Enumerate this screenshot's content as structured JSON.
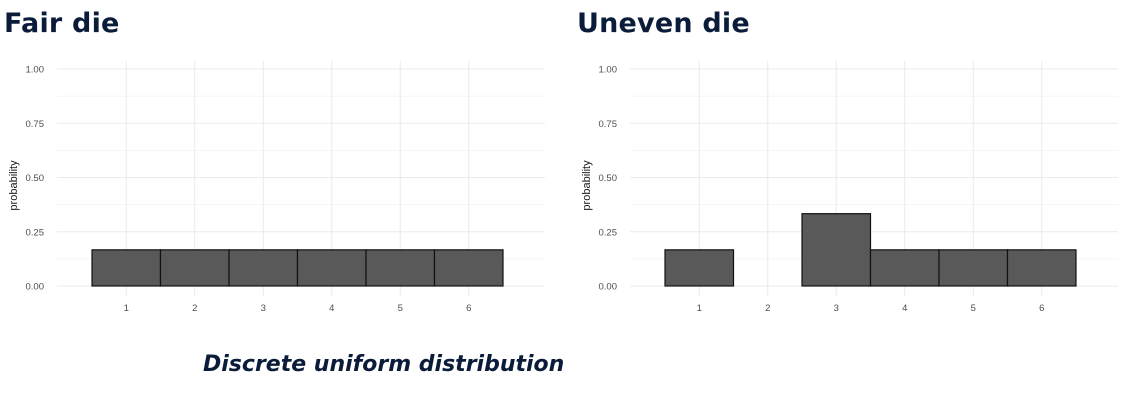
{
  "caption": "Discrete uniform distribution",
  "colors": {
    "bar_fill": "#595959",
    "bar_stroke": "#111111",
    "grid": "#ebebeb",
    "title": "#0b1c3a"
  },
  "chart_data": [
    {
      "type": "bar",
      "title": "Fair die",
      "xlabel": "",
      "ylabel": "probability",
      "categories": [
        "1",
        "2",
        "3",
        "4",
        "5",
        "6"
      ],
      "values": [
        0.1667,
        0.1667,
        0.1667,
        0.1667,
        0.1667,
        0.1667
      ],
      "ylim": [
        0,
        1
      ],
      "yticks": [
        "0.00",
        "0.25",
        "0.50",
        "0.75",
        "1.00"
      ],
      "grid": true
    },
    {
      "type": "bar",
      "title": "Uneven die",
      "xlabel": "",
      "ylabel": "probability",
      "categories": [
        "1",
        "2",
        "3",
        "4",
        "5",
        "6"
      ],
      "values": [
        0.1667,
        0,
        0.3333,
        0.1667,
        0.1667,
        0.1667
      ],
      "ylim": [
        0,
        1
      ],
      "yticks": [
        "0.00",
        "0.25",
        "0.50",
        "0.75",
        "1.00"
      ],
      "grid": true
    }
  ]
}
